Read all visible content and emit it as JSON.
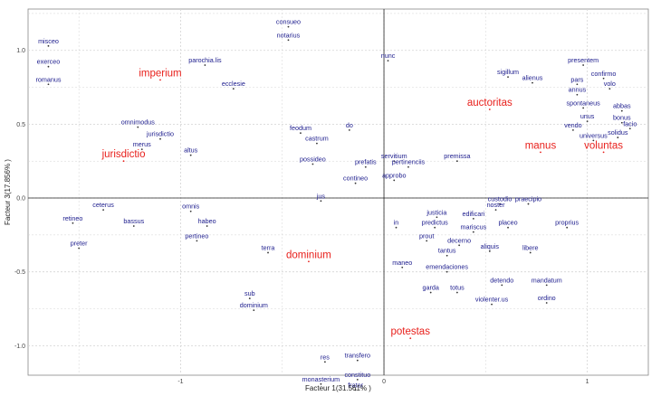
{
  "chart_data": {
    "type": "scatter",
    "title": "",
    "xlabel": "Facteur 1(31.561% )",
    "ylabel": "Facteur 3(17.856% )",
    "xlim": [
      -1.75,
      1.3
    ],
    "ylim": [
      -1.2,
      1.28
    ],
    "grid": true,
    "x_ticks": [
      {
        "value": -1,
        "label": "-1"
      },
      {
        "value": 0,
        "label": "0"
      },
      {
        "value": 1,
        "label": "1"
      }
    ],
    "y_ticks": [
      {
        "value": 1.0,
        "label": "1.0"
      },
      {
        "value": 0.5,
        "label": "0.5"
      },
      {
        "value": 0.0,
        "label": "0.0"
      },
      {
        "value": -0.5,
        "label": "-0.5"
      },
      {
        "value": -1.0,
        "label": "-1.0"
      }
    ],
    "colors": {
      "words": "#1a1a8c",
      "highlight": "#e8201c",
      "point": "#333333",
      "grid": "#d4d4d4",
      "axis": "#222222"
    },
    "points": [
      {
        "label": "consueo",
        "x": -0.47,
        "y": 1.16
      },
      {
        "label": "notarius",
        "x": -0.47,
        "y": 1.07
      },
      {
        "label": "misceo",
        "x": -1.65,
        "y": 1.03
      },
      {
        "label": "exerceo",
        "x": -1.65,
        "y": 0.89
      },
      {
        "label": "romanus",
        "x": -1.65,
        "y": 0.77
      },
      {
        "label": "parochia.lis",
        "x": -0.88,
        "y": 0.9
      },
      {
        "label": "imperium",
        "x": -1.1,
        "y": 0.8,
        "highlight": true
      },
      {
        "label": "ecclesie",
        "x": -0.74,
        "y": 0.74
      },
      {
        "label": "nunc",
        "x": 0.02,
        "y": 0.93
      },
      {
        "label": "sigillum",
        "x": 0.61,
        "y": 0.82
      },
      {
        "label": "alienus",
        "x": 0.73,
        "y": 0.78
      },
      {
        "label": "presentem",
        "x": 0.98,
        "y": 0.9
      },
      {
        "label": "confirmo",
        "x": 1.08,
        "y": 0.81
      },
      {
        "label": "pars",
        "x": 0.95,
        "y": 0.77
      },
      {
        "label": "volo",
        "x": 1.11,
        "y": 0.74
      },
      {
        "label": "annus",
        "x": 0.95,
        "y": 0.7
      },
      {
        "label": "auctoritas",
        "x": 0.52,
        "y": 0.6,
        "highlight": true
      },
      {
        "label": "spontaneus",
        "x": 0.98,
        "y": 0.61
      },
      {
        "label": "abbas",
        "x": 1.17,
        "y": 0.59
      },
      {
        "label": "unus",
        "x": 1.0,
        "y": 0.52
      },
      {
        "label": "bonus",
        "x": 1.17,
        "y": 0.51
      },
      {
        "label": "vendo",
        "x": 0.93,
        "y": 0.46
      },
      {
        "label": "facio",
        "x": 1.21,
        "y": 0.47
      },
      {
        "label": "universus",
        "x": 1.03,
        "y": 0.39
      },
      {
        "label": "solidus",
        "x": 1.15,
        "y": 0.41
      },
      {
        "label": "manus",
        "x": 0.77,
        "y": 0.31,
        "highlight": true
      },
      {
        "label": "voluntas",
        "x": 1.08,
        "y": 0.31,
        "highlight": true
      },
      {
        "label": "omnimodus",
        "x": -1.21,
        "y": 0.48
      },
      {
        "label": "jurisdictio",
        "x": -1.1,
        "y": 0.4
      },
      {
        "label": "merus",
        "x": -1.19,
        "y": 0.33
      },
      {
        "label": "jurisdictio",
        "x": -1.28,
        "y": 0.25,
        "highlight": true
      },
      {
        "label": "altus",
        "x": -0.95,
        "y": 0.29
      },
      {
        "label": "feodum",
        "x": -0.41,
        "y": 0.44
      },
      {
        "label": "do",
        "x": -0.17,
        "y": 0.46
      },
      {
        "label": "castrum",
        "x": -0.33,
        "y": 0.37
      },
      {
        "label": "possideo",
        "x": -0.35,
        "y": 0.23
      },
      {
        "label": "prefatis",
        "x": -0.09,
        "y": 0.21
      },
      {
        "label": "servitium",
        "x": 0.05,
        "y": 0.25
      },
      {
        "label": "pertinenciis",
        "x": 0.12,
        "y": 0.21
      },
      {
        "label": "premissa",
        "x": 0.36,
        "y": 0.25
      },
      {
        "label": "contineo",
        "x": -0.14,
        "y": 0.1
      },
      {
        "label": "approbo",
        "x": 0.05,
        "y": 0.12
      },
      {
        "label": "jus",
        "x": -0.31,
        "y": -0.02
      },
      {
        "label": "custodio",
        "x": 0.57,
        "y": -0.04
      },
      {
        "label": "praecipio",
        "x": 0.71,
        "y": -0.04
      },
      {
        "label": "noster",
        "x": 0.55,
        "y": -0.08
      },
      {
        "label": "edificari",
        "x": 0.44,
        "y": -0.14
      },
      {
        "label": "ceterus",
        "x": -1.38,
        "y": -0.08
      },
      {
        "label": "omnis",
        "x": -0.95,
        "y": -0.09
      },
      {
        "label": "retineo",
        "x": -1.53,
        "y": -0.17
      },
      {
        "label": "bassus",
        "x": -1.23,
        "y": -0.19
      },
      {
        "label": "habeo",
        "x": -0.87,
        "y": -0.19
      },
      {
        "label": "pertineo",
        "x": -0.92,
        "y": -0.29
      },
      {
        "label": "justicia",
        "x": 0.26,
        "y": -0.13
      },
      {
        "label": "predictus",
        "x": 0.25,
        "y": -0.2
      },
      {
        "label": "in",
        "x": 0.06,
        "y": -0.2
      },
      {
        "label": "mariscus",
        "x": 0.44,
        "y": -0.23
      },
      {
        "label": "placeo",
        "x": 0.61,
        "y": -0.2
      },
      {
        "label": "proprius",
        "x": 0.9,
        "y": -0.2
      },
      {
        "label": "preter",
        "x": -1.5,
        "y": -0.34
      },
      {
        "label": "terra",
        "x": -0.57,
        "y": -0.37
      },
      {
        "label": "prout",
        "x": 0.21,
        "y": -0.29
      },
      {
        "label": "decerno",
        "x": 0.37,
        "y": -0.32
      },
      {
        "label": "aliquis",
        "x": 0.52,
        "y": -0.36
      },
      {
        "label": "libere",
        "x": 0.72,
        "y": -0.37
      },
      {
        "label": "tantus",
        "x": 0.31,
        "y": -0.39
      },
      {
        "label": "dominium",
        "x": -0.37,
        "y": -0.43,
        "highlight": true
      },
      {
        "label": "maneo",
        "x": 0.09,
        "y": -0.47
      },
      {
        "label": "emendaciones",
        "x": 0.31,
        "y": -0.5
      },
      {
        "label": "detendo",
        "x": 0.58,
        "y": -0.59
      },
      {
        "label": "mandatum",
        "x": 0.8,
        "y": -0.59
      },
      {
        "label": "garda",
        "x": 0.23,
        "y": -0.64
      },
      {
        "label": "totus",
        "x": 0.36,
        "y": -0.64
      },
      {
        "label": "violenter.us",
        "x": 0.53,
        "y": -0.72
      },
      {
        "label": "ordino",
        "x": 0.8,
        "y": -0.71
      },
      {
        "label": "sub",
        "x": -0.66,
        "y": -0.68
      },
      {
        "label": "dominium",
        "x": -0.64,
        "y": -0.76
      },
      {
        "label": "potestas",
        "x": 0.13,
        "y": -0.95,
        "highlight": true
      },
      {
        "label": "res",
        "x": -0.29,
        "y": -1.11
      },
      {
        "label": "transfero",
        "x": -0.13,
        "y": -1.1
      },
      {
        "label": "constituo",
        "x": -0.13,
        "y": -1.23
      },
      {
        "label": "monasterium",
        "x": -0.31,
        "y": -1.26
      },
      {
        "label": "frater",
        "x": -0.14,
        "y": -1.3
      }
    ]
  }
}
